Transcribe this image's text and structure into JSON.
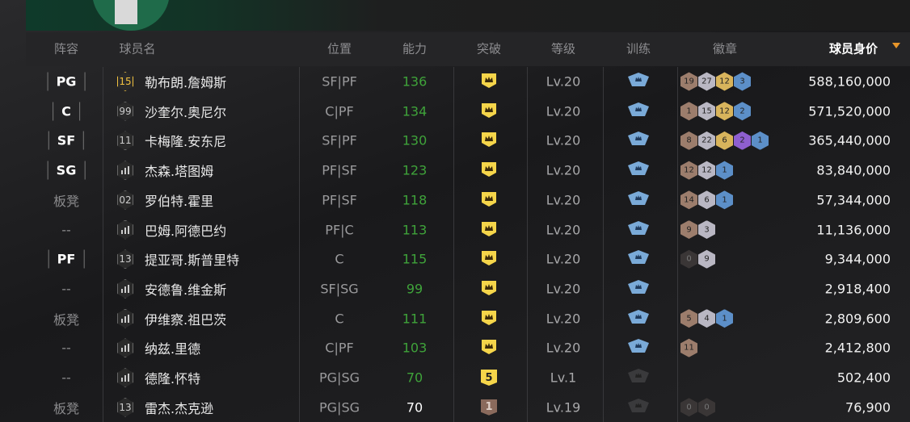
{
  "table": {
    "columns": [
      "阵容",
      "球员名",
      "位置",
      "能力",
      "突破",
      "等级",
      "训练",
      "徽章",
      "球员身价"
    ],
    "rows": [
      {
        "lineup": "PG",
        "starter": true,
        "number": "15",
        "name": "勒布朗.詹姆斯",
        "position": "SF|PF",
        "ability": "136",
        "ability_color": "#3fa33a",
        "breakthrough": null,
        "level": "Lv.20",
        "trained": true,
        "badges": [
          {
            "count": "19",
            "color": "#9c7d6c"
          },
          {
            "count": "27",
            "color": "#b9b7c3"
          },
          {
            "count": "12",
            "color": "#d8b45c"
          },
          {
            "count": "3",
            "color": "#5c8fc8"
          }
        ],
        "value": "588,160,000"
      },
      {
        "lineup": "C",
        "starter": true,
        "number": "99",
        "name": "沙奎尔.奥尼尔",
        "position": "C|PF",
        "ability": "134",
        "ability_color": "#3fa33a",
        "breakthrough": null,
        "level": "Lv.20",
        "trained": true,
        "badges": [
          {
            "count": "1",
            "color": "#9c7d6c"
          },
          {
            "count": "15",
            "color": "#b9b7c3"
          },
          {
            "count": "12",
            "color": "#d8b45c"
          },
          {
            "count": "2",
            "color": "#5c8fc8"
          }
        ],
        "value": "571,520,000"
      },
      {
        "lineup": "SF",
        "starter": true,
        "number": "11",
        "name": "卡梅隆.安东尼",
        "position": "SF|PF",
        "ability": "130",
        "ability_color": "#3fa33a",
        "breakthrough": null,
        "level": "Lv.20",
        "trained": true,
        "badges": [
          {
            "count": "8",
            "color": "#9c7d6c"
          },
          {
            "count": "22",
            "color": "#b9b7c3"
          },
          {
            "count": "6",
            "color": "#d8b45c"
          },
          {
            "count": "2",
            "color": "#8e5fd0"
          },
          {
            "count": "1",
            "color": "#5c8fc8"
          }
        ],
        "value": "365,440,000"
      },
      {
        "lineup": "SG",
        "starter": true,
        "number": null,
        "name": "杰森.塔图姆",
        "position": "PF|SF",
        "ability": "123",
        "ability_color": "#3fa33a",
        "breakthrough": null,
        "level": "Lv.20",
        "trained": true,
        "badges": [
          {
            "count": "12",
            "color": "#9c7d6c"
          },
          {
            "count": "12",
            "color": "#b9b7c3"
          },
          {
            "count": "1",
            "color": "#5c8fc8"
          }
        ],
        "value": "83,840,000"
      },
      {
        "lineup": "板凳",
        "starter": false,
        "number": "02",
        "name": "罗伯特.霍里",
        "position": "PF|SF",
        "ability": "118",
        "ability_color": "#3fa33a",
        "breakthrough": null,
        "level": "Lv.20",
        "trained": true,
        "badges": [
          {
            "count": "14",
            "color": "#9c7d6c"
          },
          {
            "count": "6",
            "color": "#b9b7c3"
          },
          {
            "count": "1",
            "color": "#5c8fc8"
          }
        ],
        "value": "57,344,000"
      },
      {
        "lineup": "--",
        "starter": false,
        "number": null,
        "name": "巴姆.阿德巴约",
        "position": "PF|C",
        "ability": "113",
        "ability_color": "#3fa33a",
        "breakthrough": null,
        "level": "Lv.20",
        "trained": true,
        "badges": [
          {
            "count": "9",
            "color": "#9c7d6c"
          },
          {
            "count": "3",
            "color": "#b9b7c3"
          }
        ],
        "value": "11,136,000"
      },
      {
        "lineup": "PF",
        "starter": true,
        "number": "13",
        "name": "提亚哥.斯普里特",
        "position": "C",
        "ability": "115",
        "ability_color": "#3fa33a",
        "breakthrough": null,
        "level": "Lv.20",
        "trained": true,
        "badges": [
          {
            "count": "0",
            "color": "#3a3636"
          },
          {
            "count": "9",
            "color": "#b9b7c3"
          }
        ],
        "value": "9,344,000"
      },
      {
        "lineup": "--",
        "starter": false,
        "number": null,
        "name": "安德鲁.维金斯",
        "position": "SF|SG",
        "ability": "99",
        "ability_color": "#3fa33a",
        "breakthrough": null,
        "level": "Lv.20",
        "trained": true,
        "badges": [],
        "value": "2,918,400"
      },
      {
        "lineup": "板凳",
        "starter": false,
        "number": null,
        "name": "伊维察.祖巴茨",
        "position": "C",
        "ability": "111",
        "ability_color": "#3fa33a",
        "breakthrough": null,
        "level": "Lv.20",
        "trained": true,
        "badges": [
          {
            "count": "5",
            "color": "#9c7d6c"
          },
          {
            "count": "4",
            "color": "#b9b7c3"
          },
          {
            "count": "1",
            "color": "#5c8fc8"
          }
        ],
        "value": "2,809,600"
      },
      {
        "lineup": "--",
        "starter": false,
        "number": null,
        "name": "纳兹.里德",
        "position": "C|PF",
        "ability": "103",
        "ability_color": "#3fa33a",
        "breakthrough": null,
        "level": "Lv.20",
        "trained": true,
        "badges": [
          {
            "count": "11",
            "color": "#9c7d6c"
          }
        ],
        "value": "2,412,800"
      },
      {
        "lineup": "--",
        "starter": false,
        "number": null,
        "name": "德隆.怀特",
        "position": "PG|SG",
        "ability": "70",
        "ability_color": "#3fa33a",
        "breakthrough": "5",
        "level": "Lv.1",
        "trained": false,
        "badges": [],
        "value": "502,400"
      },
      {
        "lineup": "板凳",
        "starter": false,
        "number": "13",
        "name": "雷杰.杰克逊",
        "position": "PG|SG",
        "ability": "70",
        "ability_color": "#ffffff",
        "breakthrough": "1",
        "level": "Lv.19",
        "trained": false,
        "badges": [
          {
            "count": "0",
            "color": "#3a3636"
          },
          {
            "count": "0",
            "color": "#3a3636"
          }
        ],
        "value": "76,900"
      }
    ]
  }
}
